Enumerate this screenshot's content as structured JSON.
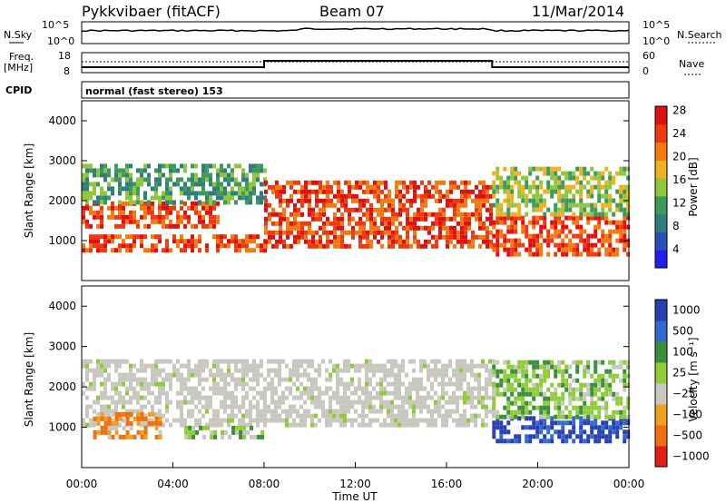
{
  "header": {
    "station": "Pykkvibaer (fitACF)",
    "beam": "Beam 07",
    "date": "11/Mar/2014"
  },
  "strips": {
    "nsky_label": "N.Sky",
    "nsearch_label": "N.Search",
    "freq_label_1": "Freq.",
    "freq_label_2": "[MHz]",
    "nave_label": "Nave",
    "cpid_label": "CPID",
    "cpid_text": "normal (fast stereo) 153",
    "nsky_ticks": [
      "10^5",
      "10^0"
    ],
    "nsearch_ticks": [
      "10^5",
      "10^0"
    ],
    "freq_ticks": [
      "18",
      "8"
    ],
    "nave_ticks": [
      "60",
      "0"
    ]
  },
  "colors": {
    "power": [
      "#1f1ff0",
      "#2a4fb8",
      "#2f7d7d",
      "#3c9a5a",
      "#8fc63c",
      "#f0b020",
      "#f27a10",
      "#ee3a10",
      "#e01010"
    ],
    "velocity": [
      "#2a3fb0",
      "#2f6bd0",
      "#3a8f3a",
      "#8fcc3a",
      "#c8c8c0",
      "#f0a020",
      "#f07010",
      "#e02010"
    ]
  },
  "chart_data": [
    {
      "type": "heatmap",
      "name": "power",
      "ylabel": "Slant Range [km]",
      "xlim": [
        "00:00",
        "00:00"
      ],
      "ylim": [
        0,
        4500
      ],
      "yticks": [
        "1000",
        "2000",
        "3000",
        "4000"
      ],
      "colorbar_label": "Power [dB]",
      "colorbar_ticks": [
        "4",
        "8",
        "12",
        "16",
        "20",
        "24",
        "28"
      ],
      "regions": [
        {
          "t0": 0.0,
          "t1": 8.0,
          "r0": 700,
          "r1": 1100,
          "value_db": 24
        },
        {
          "t0": 0.0,
          "t1": 6.0,
          "r0": 1300,
          "r1": 1900,
          "value_db": 24
        },
        {
          "t0": 0.0,
          "t1": 8.0,
          "r0": 1900,
          "r1": 2900,
          "value_db": 12
        },
        {
          "t0": 8.0,
          "t1": 18.0,
          "r0": 800,
          "r1": 2400,
          "value_db": 26
        },
        {
          "t0": 18.0,
          "t1": 24.0,
          "r0": 600,
          "r1": 1600,
          "value_db": 24
        },
        {
          "t0": 18.0,
          "t1": 24.0,
          "r0": 1600,
          "r1": 2800,
          "value_db": 14
        }
      ]
    },
    {
      "type": "heatmap",
      "name": "velocity",
      "xlabel": "Time UT",
      "ylabel": "Slant Range [km]",
      "xticks": [
        "00:00",
        "04:00",
        "08:00",
        "12:00",
        "16:00",
        "20:00",
        "00:00"
      ],
      "ylim": [
        0,
        4500
      ],
      "yticks": [
        "1000",
        "2000",
        "3000",
        "4000"
      ],
      "colorbar_label": "Velocity [m s⁻¹]",
      "colorbar_ticks": [
        "1000",
        "500",
        "100",
        "25",
        "−25",
        "−100",
        "−500",
        "−1000"
      ],
      "regions": [
        {
          "t0": 0.0,
          "t1": 18.0,
          "r0": 1000,
          "r1": 2600,
          "value_ms": 0
        },
        {
          "t0": 0.5,
          "t1": 3.5,
          "r0": 700,
          "r1": 1300,
          "value_ms": -300
        },
        {
          "t0": 4.5,
          "t1": 8.0,
          "r0": 700,
          "r1": 1000,
          "value_ms": 50
        },
        {
          "t0": 18.0,
          "t1": 24.0,
          "r0": 600,
          "r1": 1200,
          "value_ms": 400
        },
        {
          "t0": 18.0,
          "t1": 24.0,
          "r0": 1200,
          "r1": 2600,
          "value_ms": 60
        }
      ]
    }
  ]
}
